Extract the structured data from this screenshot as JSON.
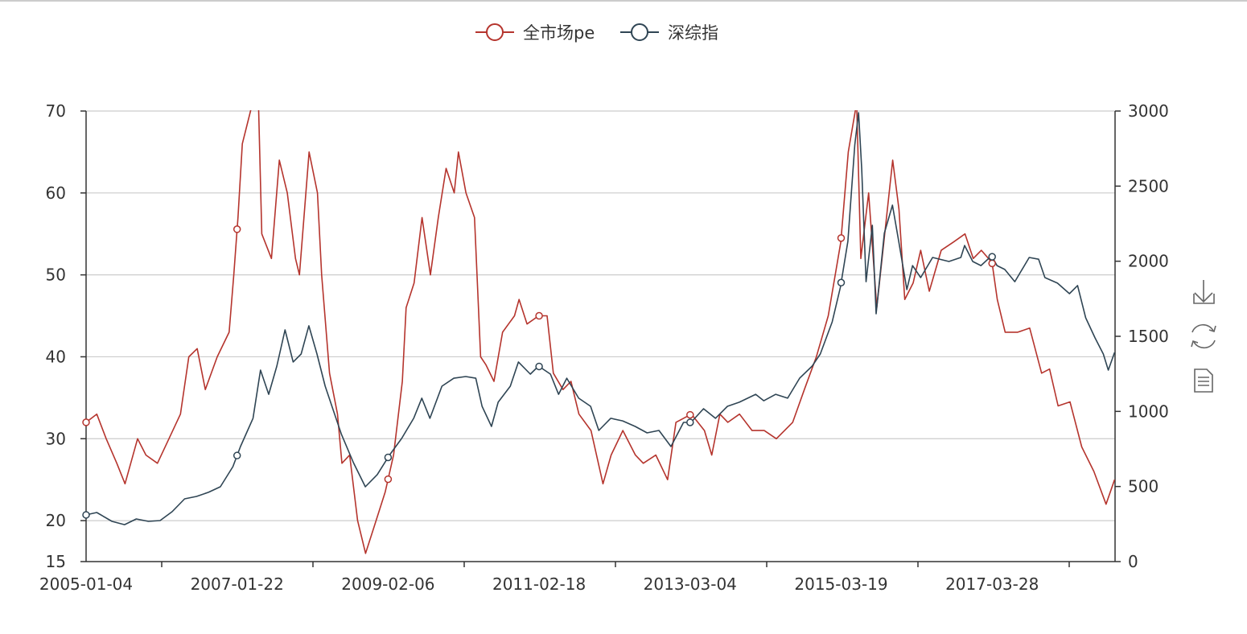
{
  "chart_data": {
    "type": "line",
    "legend": {
      "position": "top-center",
      "items": [
        "全市场pe",
        "深综指"
      ]
    },
    "x_tick_labels": [
      "2005-01-04",
      "2007-01-22",
      "2009-02-06",
      "2011-02-18",
      "2013-03-04",
      "2015-03-19",
      "2017-03-28"
    ],
    "y_left": {
      "min": 15,
      "max": 70,
      "ticks": [
        15,
        20,
        30,
        40,
        50,
        60,
        70
      ]
    },
    "y_right": {
      "min": 0,
      "max": 3000,
      "ticks": [
        0,
        500,
        1000,
        1500,
        2000,
        2500,
        3000
      ]
    },
    "grid": true,
    "series": [
      {
        "name": "全市场pe",
        "axis": "left",
        "color": "#b5342d",
        "points": [
          [
            "2005-01-04",
            32
          ],
          [
            "2005-02-25",
            33
          ],
          [
            "2005-04-10",
            30
          ],
          [
            "2005-06-01",
            27
          ],
          [
            "2005-07-10",
            24.5
          ],
          [
            "2005-09-10",
            30
          ],
          [
            "2005-10-20",
            28
          ],
          [
            "2005-12-15",
            27
          ],
          [
            "2006-02-10",
            30
          ],
          [
            "2006-04-05",
            33
          ],
          [
            "2006-05-15",
            40
          ],
          [
            "2006-06-25",
            41
          ],
          [
            "2006-08-04",
            36
          ],
          [
            "2006-10-01",
            40
          ],
          [
            "2006-11-28",
            43
          ],
          [
            "2006-12-20",
            50
          ],
          [
            "2007-01-10",
            57
          ],
          [
            "2007-02-01",
            66
          ],
          [
            "2007-03-10",
            70
          ],
          [
            "2007-04-15",
            74
          ],
          [
            "2007-05-04",
            55
          ],
          [
            "2007-06-20",
            52
          ],
          [
            "2007-07-28",
            64
          ],
          [
            "2007-09-06",
            60
          ],
          [
            "2007-10-15",
            52
          ],
          [
            "2007-11-04",
            50
          ],
          [
            "2007-12-20",
            65
          ],
          [
            "2008-01-30",
            60
          ],
          [
            "2008-02-20",
            50
          ],
          [
            "2008-03-28",
            38
          ],
          [
            "2008-05-06",
            33
          ],
          [
            "2008-05-27",
            27
          ],
          [
            "2008-07-04",
            28
          ],
          [
            "2008-08-12",
            20
          ],
          [
            "2008-09-20",
            16
          ],
          [
            "2008-10-28",
            19
          ],
          [
            "2008-12-24",
            23.5
          ],
          [
            "2009-02-04",
            28
          ],
          [
            "2009-03-16",
            37
          ],
          [
            "2009-04-04",
            46
          ],
          [
            "2009-05-12",
            49
          ],
          [
            "2009-06-20",
            57
          ],
          [
            "2009-07-30",
            50
          ],
          [
            "2009-09-08",
            57
          ],
          [
            "2009-10-15",
            63
          ],
          [
            "2009-11-24",
            60
          ],
          [
            "2009-12-14",
            65
          ],
          [
            "2010-01-20",
            60
          ],
          [
            "2010-03-01",
            57
          ],
          [
            "2010-03-30",
            40
          ],
          [
            "2010-04-26",
            39
          ],
          [
            "2010-06-04",
            37
          ],
          [
            "2010-07-15",
            43
          ],
          [
            "2010-09-12",
            45
          ],
          [
            "2010-10-04",
            47
          ],
          [
            "2010-11-12",
            44
          ],
          [
            "2011-01-08",
            45
          ],
          [
            "2011-02-18",
            45
          ],
          [
            "2011-03-18",
            38
          ],
          [
            "2011-05-04",
            36
          ],
          [
            "2011-06-12",
            37
          ],
          [
            "2011-07-20",
            33
          ],
          [
            "2011-09-18",
            31
          ],
          [
            "2011-11-15",
            24.5
          ],
          [
            "2011-12-24",
            28
          ],
          [
            "2012-02-20",
            31
          ],
          [
            "2012-04-20",
            28
          ],
          [
            "2012-05-28",
            27
          ],
          [
            "2012-07-28",
            28
          ],
          [
            "2012-09-24",
            25
          ],
          [
            "2012-11-04",
            32
          ],
          [
            "2013-01-18",
            33
          ],
          [
            "2013-03-20",
            31
          ],
          [
            "2013-04-25",
            28
          ],
          [
            "2013-06-04",
            33
          ],
          [
            "2013-07-12",
            32
          ],
          [
            "2013-09-08",
            33
          ],
          [
            "2013-11-08",
            31
          ],
          [
            "2014-01-06",
            31
          ],
          [
            "2014-03-04",
            30
          ],
          [
            "2014-05-22",
            32
          ],
          [
            "2014-07-18",
            36
          ],
          [
            "2014-09-15",
            40
          ],
          [
            "2014-11-12",
            45
          ],
          [
            "2015-01-12",
            54
          ],
          [
            "2015-02-18",
            65
          ],
          [
            "2015-03-28",
            71
          ],
          [
            "2015-04-18",
            52
          ],
          [
            "2015-05-25",
            60
          ],
          [
            "2015-07-04",
            46
          ],
          [
            "2015-08-12",
            55
          ],
          [
            "2015-09-20",
            64
          ],
          [
            "2015-10-20",
            58
          ],
          [
            "2015-11-18",
            47
          ],
          [
            "2015-12-28",
            49
          ],
          [
            "2016-02-04",
            53
          ],
          [
            "2016-03-15",
            48
          ],
          [
            "2016-05-12",
            53
          ],
          [
            "2016-07-10",
            54
          ],
          [
            "2016-09-06",
            55
          ],
          [
            "2016-10-15",
            52
          ],
          [
            "2016-11-24",
            53
          ],
          [
            "2017-01-15",
            51.5
          ],
          [
            "2017-02-10",
            47
          ],
          [
            "2017-03-18",
            43
          ],
          [
            "2017-05-18",
            43
          ],
          [
            "2017-07-15",
            43.5
          ],
          [
            "2017-09-12",
            38
          ],
          [
            "2017-10-20",
            38.5
          ],
          [
            "2017-12-01",
            34
          ],
          [
            "2018-01-28",
            34.5
          ],
          [
            "2018-03-24",
            29
          ],
          [
            "2018-05-22",
            26
          ],
          [
            "2018-07-20",
            22
          ],
          [
            "2018-09-01",
            25
          ]
        ]
      },
      {
        "name": "深综指",
        "axis": "right",
        "color": "#2f4554",
        "points": [
          [
            "2005-01-04",
            311
          ],
          [
            "2005-02-25",
            327
          ],
          [
            "2005-05-08",
            268
          ],
          [
            "2005-07-08",
            246
          ],
          [
            "2005-09-04",
            284
          ],
          [
            "2005-11-02",
            268
          ],
          [
            "2005-12-28",
            273
          ],
          [
            "2006-02-25",
            332
          ],
          [
            "2006-04-25",
            418
          ],
          [
            "2006-06-22",
            434
          ],
          [
            "2006-08-19",
            461
          ],
          [
            "2006-10-16",
            498
          ],
          [
            "2006-12-16",
            632
          ],
          [
            "2007-01-22",
            766
          ],
          [
            "2007-03-22",
            954
          ],
          [
            "2007-04-28",
            1275
          ],
          [
            "2007-06-07",
            1114
          ],
          [
            "2007-07-16",
            1302
          ],
          [
            "2007-08-25",
            1543
          ],
          [
            "2007-10-04",
            1329
          ],
          [
            "2007-11-12",
            1382
          ],
          [
            "2007-12-19",
            1570
          ],
          [
            "2008-01-28",
            1382
          ],
          [
            "2008-03-07",
            1168
          ],
          [
            "2008-04-16",
            1007
          ],
          [
            "2008-05-25",
            846
          ],
          [
            "2008-07-22",
            659
          ],
          [
            "2008-09-19",
            498
          ],
          [
            "2008-11-16",
            579
          ],
          [
            "2009-01-16",
            712
          ],
          [
            "2009-03-13",
            820
          ],
          [
            "2009-05-10",
            954
          ],
          [
            "2009-06-19",
            1088
          ],
          [
            "2009-07-28",
            954
          ],
          [
            "2009-09-25",
            1168
          ],
          [
            "2009-11-22",
            1221
          ],
          [
            "2010-01-19",
            1232
          ],
          [
            "2010-03-07",
            1221
          ],
          [
            "2010-04-07",
            1034
          ],
          [
            "2010-05-22",
            900
          ],
          [
            "2010-06-24",
            1061
          ],
          [
            "2010-08-22",
            1168
          ],
          [
            "2010-10-01",
            1329
          ],
          [
            "2010-11-28",
            1248
          ],
          [
            "2011-01-07",
            1302
          ],
          [
            "2011-03-04",
            1248
          ],
          [
            "2011-04-13",
            1114
          ],
          [
            "2011-05-22",
            1221
          ],
          [
            "2011-07-19",
            1088
          ],
          [
            "2011-09-16",
            1034
          ],
          [
            "2011-10-25",
            873
          ],
          [
            "2011-12-22",
            954
          ],
          [
            "2012-02-19",
            937
          ],
          [
            "2012-04-19",
            900
          ],
          [
            "2012-06-16",
            857
          ],
          [
            "2012-08-13",
            873
          ],
          [
            "2012-10-10",
            766
          ],
          [
            "2012-12-10",
            927
          ],
          [
            "2013-01-16",
            927
          ],
          [
            "2013-03-16",
            1018
          ],
          [
            "2013-05-13",
            954
          ],
          [
            "2013-07-10",
            1034
          ],
          [
            "2013-09-07",
            1061
          ],
          [
            "2013-11-25",
            1114
          ],
          [
            "2014-01-04",
            1071
          ],
          [
            "2014-03-01",
            1114
          ],
          [
            "2014-04-28",
            1088
          ],
          [
            "2014-06-25",
            1221
          ],
          [
            "2014-08-25",
            1302
          ],
          [
            "2014-10-04",
            1382
          ],
          [
            "2014-12-01",
            1596
          ],
          [
            "2015-01-10",
            1827
          ],
          [
            "2015-02-16",
            2132
          ],
          [
            "2015-03-19",
            2775
          ],
          [
            "2015-04-07",
            2989
          ],
          [
            "2015-04-22",
            2614
          ],
          [
            "2015-05-13",
            1864
          ],
          [
            "2015-06-13",
            2239
          ],
          [
            "2015-07-01",
            1650
          ],
          [
            "2015-08-10",
            2186
          ],
          [
            "2015-09-19",
            2373
          ],
          [
            "2015-10-19",
            2132
          ],
          [
            "2015-11-28",
            1811
          ],
          [
            "2015-12-25",
            1971
          ],
          [
            "2016-02-04",
            1891
          ],
          [
            "2016-04-01",
            2025
          ],
          [
            "2016-06-19",
            1998
          ],
          [
            "2016-08-16",
            2025
          ],
          [
            "2016-09-04",
            2105
          ],
          [
            "2016-10-13",
            1998
          ],
          [
            "2016-11-22",
            1971
          ],
          [
            "2017-01-13",
            2036
          ],
          [
            "2017-02-09",
            1971
          ],
          [
            "2017-03-16",
            1945
          ],
          [
            "2017-05-04",
            1864
          ],
          [
            "2017-07-13",
            2025
          ],
          [
            "2017-08-28",
            2013
          ],
          [
            "2017-09-28",
            1891
          ],
          [
            "2017-11-28",
            1854
          ],
          [
            "2018-01-25",
            1784
          ],
          [
            "2018-03-04",
            1838
          ],
          [
            "2018-04-13",
            1623
          ],
          [
            "2018-05-28",
            1489
          ],
          [
            "2018-07-07",
            1382
          ],
          [
            "2018-08-01",
            1275
          ],
          [
            "2018-09-01",
            1393
          ]
        ]
      }
    ]
  },
  "toolbox": [
    {
      "icon": "download-icon"
    },
    {
      "icon": "refresh-icon"
    },
    {
      "icon": "data-view-icon"
    }
  ]
}
